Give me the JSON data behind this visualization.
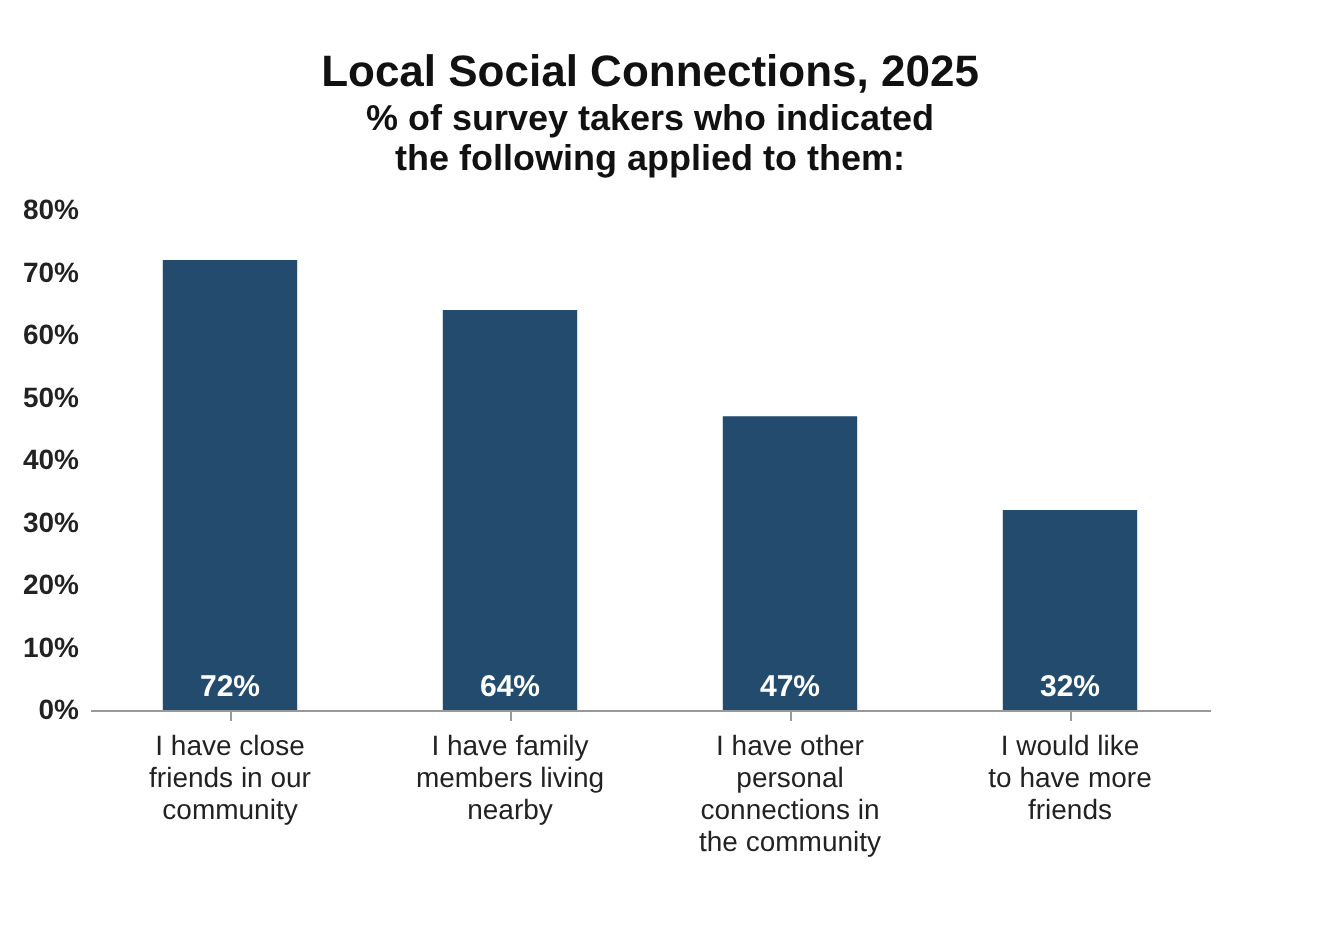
{
  "chart_data": {
    "type": "bar",
    "title": "Local Social Connections, 2025",
    "subtitle": "% of survey takers who indicated the following applied to them:",
    "categories": [
      "I have close friends in our community",
      "I have family members living nearby",
      "I have other personal connections in the community",
      "I would like to have more friends"
    ],
    "values": [
      72,
      64,
      47,
      32
    ],
    "color": "#234b6e",
    "value_labels": [
      "72%",
      "64%",
      "47%",
      "32%"
    ],
    "ylim": [
      0,
      80
    ],
    "yticks": [
      {
        "value": 0,
        "label": "0%"
      },
      {
        "value": 10,
        "label": "10%"
      },
      {
        "value": 20,
        "label": "20%"
      },
      {
        "value": 30,
        "label": "30%"
      },
      {
        "value": 40,
        "label": "40%"
      },
      {
        "value": 50,
        "label": "50%"
      },
      {
        "value": 60,
        "label": "60%"
      },
      {
        "value": 70,
        "label": "70%"
      },
      {
        "value": 80,
        "label": "80%"
      }
    ],
    "grid": false
  }
}
